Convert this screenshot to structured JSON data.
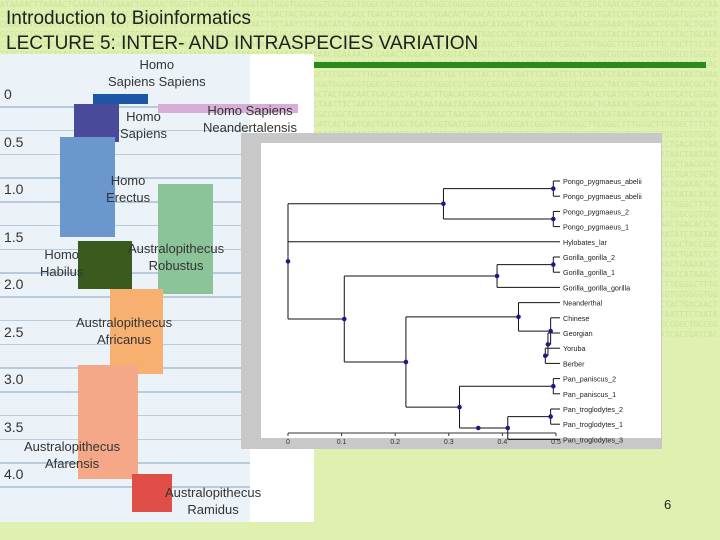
{
  "header": {
    "course_title": "Introduction to Bioinformatics",
    "lecture_title": "LECTURE 5: INTER- AND INTRASPECIES VARIATION"
  },
  "slide_number": "6",
  "timeline": {
    "axis_ticks": [
      "0",
      "0.5",
      "1.0",
      "1.5",
      "2.0",
      "2.5",
      "3.0",
      "3.5",
      "4.0"
    ],
    "species": [
      {
        "name": "Homo Sapiens Sapiens",
        "lines": [
          "Homo",
          "Sapiens Sapiens"
        ],
        "color": "#1e56a6",
        "start": 0.0,
        "end": 0.1
      },
      {
        "name": "Homo Sapiens Neandertalensis",
        "lines": [
          "Homo Sapiens",
          "Neandertalensis"
        ],
        "color": "#d6aed6",
        "start": 0.1,
        "end": 0.2
      },
      {
        "name": "Homo Sapiens",
        "lines": [
          "Homo",
          "Sapiens"
        ],
        "color": "#4a4a9a",
        "start": 0.1,
        "end": 0.5
      },
      {
        "name": "Homo Erectus",
        "lines": [
          "Homo",
          "Erectus"
        ],
        "color": "#6a98cc",
        "start": 0.45,
        "end": 1.5
      },
      {
        "name": "Australopithecus Robustus",
        "lines": [
          "Australopithecus",
          "Robustus"
        ],
        "color": "#8cc49a",
        "start": 0.95,
        "end": 2.1
      },
      {
        "name": "Homo Habilus",
        "lines": [
          "Homo",
          "Habilus"
        ],
        "color": "#3a5a1e",
        "start": 1.55,
        "end": 2.05
      },
      {
        "name": "Australopithecus Africanus",
        "lines": [
          "Australopithecus",
          "Africanus"
        ],
        "color": "#f7b070",
        "start": 2.05,
        "end": 2.95
      },
      {
        "name": "Australopithecus Afarensis",
        "lines": [
          "Australopithecus",
          "Afarensis"
        ],
        "color": "#f4a888",
        "start": 2.85,
        "end": 4.05
      },
      {
        "name": "Australopithecus Ramidus",
        "lines": [
          "Australopithecus",
          "Ramidus"
        ],
        "color": "#e04e48",
        "start": 4.0,
        "end": 4.4
      }
    ]
  },
  "tree": {
    "x_axis_ticks": [
      "0",
      "0.1",
      "0.2",
      "0.3",
      "0.4",
      "0.5"
    ],
    "x_range": [
      0,
      0.5
    ],
    "leaves": [
      "Pongo_pygmaeus_abelii",
      "Pongo_pygmaeus_abelii",
      "Pongo_pygmaeus_2",
      "Pongo_pygmaeus_1",
      "Hylobates_lar",
      "Gorilla_gorilla_2",
      "Gorilla_gorilla_1",
      "Gorilla_gorilla_gorilla",
      "Neanderthal",
      "Chinese",
      "Georgian",
      "Yoruba",
      "Berber",
      "Pan_paniscus_2",
      "Pan_paniscus_1",
      "Pan_troglodytes_2",
      "Pan_troglodytes_1",
      "Pan_troglodytes_3"
    ]
  }
}
